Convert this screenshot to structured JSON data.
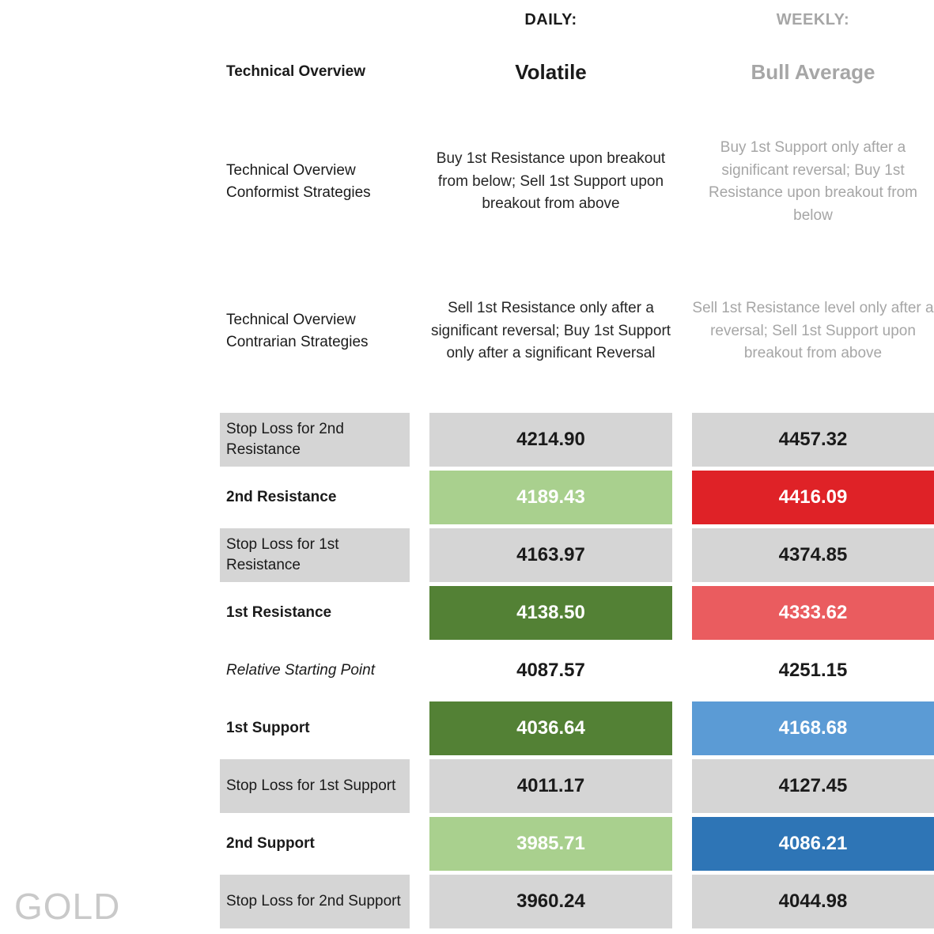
{
  "watermark": "GOLD",
  "headers": {
    "daily": "DAILY:",
    "weekly": "WEEKLY:"
  },
  "overview": {
    "label": "Technical Overview",
    "daily": "Volatile",
    "weekly": "Bull Average"
  },
  "conformist": {
    "label": "Technical Overview Conformist Strategies",
    "daily": "Buy 1st Resistance upon breakout from below; Sell 1st Support upon breakout from above",
    "weekly": "Buy 1st Support only after a significant reversal; Buy 1st Resistance upon breakout from below"
  },
  "contrarian": {
    "label": "Technical Overview Contrarian Strategies",
    "daily": "Sell 1st Resistance only after a significant reversal; Buy 1st Support only after a significant Reversal",
    "weekly": "Sell 1st Resistance level only after a reversal; Sell 1st Support upon breakout from above"
  },
  "levels": [
    {
      "label": "Stop Loss for 2nd Resistance",
      "daily": "4214.90",
      "weekly": "4457.32"
    },
    {
      "label": "2nd Resistance",
      "daily": "4189.43",
      "weekly": "4416.09"
    },
    {
      "label": "Stop Loss for 1st Resistance",
      "daily": "4163.97",
      "weekly": "4374.85"
    },
    {
      "label": "1st Resistance",
      "daily": "4138.50",
      "weekly": "4333.62"
    },
    {
      "label": "Relative Starting Point",
      "daily": "4087.57",
      "weekly": "4251.15"
    },
    {
      "label": "1st Support",
      "daily": "4036.64",
      "weekly": "4168.68"
    },
    {
      "label": "Stop Loss for 1st Support",
      "daily": "4011.17",
      "weekly": "4127.45"
    },
    {
      "label": "2nd Support",
      "daily": "3985.71",
      "weekly": "4086.21"
    },
    {
      "label": "Stop Loss for 2nd Support",
      "daily": "3960.24",
      "weekly": "4044.98"
    }
  ],
  "colors": {
    "cell-gray": "#d5d5d5",
    "green-light": "#a9d08e",
    "green-dark": "#538135",
    "red-bright": "#df2227",
    "red-light": "#ea5c5f",
    "blue-light": "#5b9bd5",
    "blue-dark": "#2e75b6",
    "weekly-text": "#a6a6a6",
    "daily-text": "#262626",
    "watermark-gray": "#c9c9c9"
  },
  "chart_data": {
    "type": "table",
    "title": "GOLD Technical Overview",
    "columns": [
      "",
      "DAILY",
      "WEEKLY"
    ],
    "rows": [
      [
        "Technical Overview",
        "Volatile",
        "Bull Average"
      ],
      [
        "Stop Loss for 2nd Resistance",
        4214.9,
        4457.32
      ],
      [
        "2nd Resistance",
        4189.43,
        4416.09
      ],
      [
        "Stop Loss for 1st Resistance",
        4163.97,
        4374.85
      ],
      [
        "1st Resistance",
        4138.5,
        4333.62
      ],
      [
        "Relative Starting Point",
        4087.57,
        4251.15
      ],
      [
        "1st Support",
        4036.64,
        4168.68
      ],
      [
        "Stop Loss for 1st Support",
        4011.17,
        4127.45
      ],
      [
        "2nd Support",
        3985.71,
        4086.21
      ],
      [
        "Stop Loss for 2nd Support",
        3960.24,
        4044.98
      ]
    ]
  }
}
